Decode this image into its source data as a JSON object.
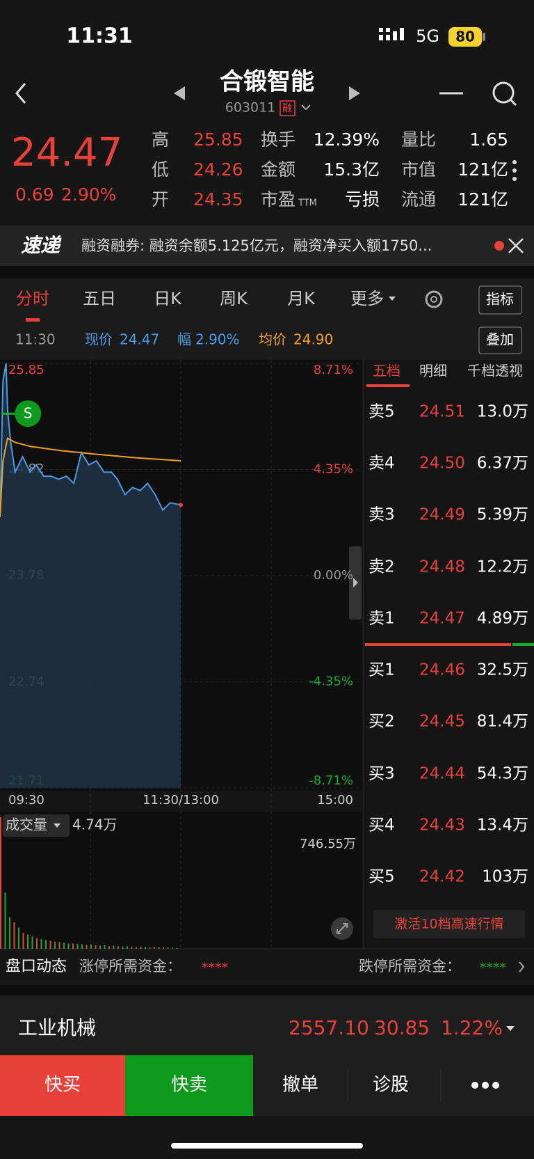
{
  "status_bar": {
    "time": "11:31",
    "network": "5G",
    "battery": "80"
  },
  "header": {
    "title": "合锻智能",
    "code": "603011",
    "badge": "融"
  },
  "quote": {
    "price": "24.47",
    "change": "0.69",
    "change_pct": "2.90%",
    "stats": [
      [
        {
          "label": "高",
          "value": "25.85"
        },
        {
          "label": "换手",
          "value": "12.39%"
        },
        {
          "label": "量比",
          "value": "1.65"
        }
      ],
      [
        {
          "label": "低",
          "value": "24.26"
        },
        {
          "label": "金额",
          "value": "15.3亿"
        },
        {
          "label": "市值",
          "value": "121亿"
        }
      ],
      [
        {
          "label": "开",
          "value": "24.35"
        },
        {
          "label": "市盈",
          "sub": "TTM",
          "value": "亏损"
        },
        {
          "label": "流通",
          "value": "121亿"
        }
      ]
    ]
  },
  "news": {
    "logo": "速递",
    "text": "融资融券: 融资余额5.125亿元，融资净买入额1750..."
  },
  "tabs": [
    "分时",
    "五日",
    "日K",
    "周K",
    "月K",
    "更多"
  ],
  "indicator_button": "指标",
  "info_row": {
    "time": "11:30",
    "price": "24.47",
    "range_label": "幅",
    "range": "2.90%",
    "avg": "24.90",
    "overlay_button": "叠加"
  },
  "chart_data": [
    {
      "type": "line",
      "xlim": [
        0,
        240
      ],
      "xticks": [
        {
          "value": 0,
          "label": "09:30"
        },
        {
          "value": 120,
          "label": "11:30/13:00"
        },
        {
          "value": 240,
          "label": "15:00"
        }
      ],
      "ylim": [
        21.71,
        25.85
      ],
      "yticks": [
        25.85,
        24.82,
        23.78,
        22.74,
        21.71
      ],
      "y2lim": [
        -8.71,
        8.71
      ],
      "y2ticks": [
        {
          "value": 8.71,
          "label": "8.71%"
        },
        {
          "value": 4.35,
          "label": "4.35%"
        },
        {
          "value": 0,
          "label": "0.00%"
        },
        {
          "value": -4.35,
          "label": "-4.35%"
        },
        {
          "value": -8.71,
          "label": "-8.71%"
        }
      ],
      "grid": true,
      "series": [
        {
          "name": "现价",
          "color": "#4a9be6",
          "x": [
            0,
            2,
            4,
            5,
            7,
            10,
            15,
            20,
            24,
            29,
            34,
            39,
            44,
            49,
            54,
            59,
            64,
            69,
            74,
            78,
            83,
            88,
            93,
            98,
            103,
            108,
            113,
            120
          ],
          "values": [
            24.35,
            25.68,
            25.85,
            25.4,
            25.09,
            24.79,
            24.94,
            24.79,
            24.86,
            24.75,
            24.75,
            24.72,
            24.75,
            24.68,
            24.98,
            24.86,
            24.9,
            24.79,
            24.79,
            24.72,
            24.57,
            24.64,
            24.61,
            24.68,
            24.57,
            24.42,
            24.49,
            24.47
          ]
        },
        {
          "name": "均价",
          "color": "#f0a020",
          "x": [
            0,
            2,
            5,
            10,
            20,
            40,
            60,
            90,
            120
          ],
          "values": [
            24.35,
            24.9,
            25.12,
            25.08,
            25.04,
            25.0,
            24.97,
            24.93,
            24.9
          ]
        }
      ],
      "annotations": [
        {
          "text": "S",
          "x": 1,
          "y": 25.36
        }
      ]
    },
    {
      "type": "bar",
      "label": "成交量",
      "current": "4.74万",
      "xlim": [
        0,
        240
      ],
      "ylim": [
        0,
        746.55
      ],
      "yticks": [
        {
          "value": 746.55,
          "label": "746.55万"
        }
      ],
      "x": [
        0,
        3,
        6,
        9,
        12,
        15,
        18,
        21,
        24,
        27,
        30,
        33,
        36,
        39,
        42,
        45,
        48,
        51,
        54,
        57,
        60,
        63,
        66,
        69,
        72,
        75,
        78,
        81,
        84,
        87,
        90,
        93,
        96,
        99,
        102,
        105,
        108,
        111,
        114,
        117
      ],
      "values": [
        746.55,
        320,
        180,
        150,
        120,
        90,
        80,
        70,
        60,
        55,
        50,
        45,
        40,
        38,
        35,
        30,
        30,
        28,
        25,
        22,
        25,
        20,
        18,
        20,
        15,
        18,
        15,
        12,
        14,
        12,
        10,
        12,
        10,
        9,
        10,
        8,
        9,
        8,
        6,
        4.74
      ],
      "colors": [
        "#e8413a",
        "#1aab2c",
        "#1aab2c",
        "#e8413a",
        "#1aab2c",
        "#e8413a",
        "#1aab2c",
        "#1aab2c",
        "#e8413a",
        "#1aab2c",
        "#1aab2c",
        "#e8413a",
        "#1aab2c",
        "#e8413a",
        "#1aab2c",
        "#1aab2c",
        "#e8413a",
        "#1aab2c",
        "#1aab2c",
        "#e8413a",
        "#1aab2c",
        "#e8413a",
        "#1aab2c",
        "#1aab2c",
        "#e8413a",
        "#1aab2c",
        "#e8413a",
        "#1aab2c",
        "#1aab2c",
        "#e8413a",
        "#1aab2c",
        "#e8413a",
        "#1aab2c",
        "#1aab2c",
        "#e8413a",
        "#1aab2c",
        "#e8413a",
        "#1aab2c",
        "#1aab2c",
        "#e8413a"
      ]
    }
  ],
  "order_book": {
    "tabs": [
      "五档",
      "明细",
      "千档透视"
    ],
    "asks": [
      {
        "label": "卖5",
        "price": "24.51",
        "volume": "13.0万"
      },
      {
        "label": "卖4",
        "price": "24.50",
        "volume": "6.37万"
      },
      {
        "label": "卖3",
        "price": "24.49",
        "volume": "5.39万"
      },
      {
        "label": "卖2",
        "price": "24.48",
        "volume": "12.2万"
      },
      {
        "label": "卖1",
        "price": "24.47",
        "volume": "4.89万"
      }
    ],
    "bids": [
      {
        "label": "买1",
        "price": "24.46",
        "volume": "32.5万"
      },
      {
        "label": "买2",
        "price": "24.45",
        "volume": "81.4万"
      },
      {
        "label": "买3",
        "price": "24.44",
        "volume": "54.3万"
      },
      {
        "label": "买4",
        "price": "24.43",
        "volume": "13.4万"
      },
      {
        "label": "买5",
        "price": "24.42",
        "volume": "103万"
      }
    ],
    "button": "激活10档高速行情"
  },
  "market_depth": {
    "label": "盘口动态",
    "limit_up_label": "涨停所需资金：",
    "limit_up_value": "****",
    "limit_down_label": "跌停所需资金：",
    "limit_down_value": "****"
  },
  "sector": {
    "name": "工业机械",
    "price": "2557.10",
    "change": "30.85",
    "change_pct": "1.22%"
  },
  "actions": [
    "快买",
    "快卖",
    "撤单",
    "诊股"
  ]
}
